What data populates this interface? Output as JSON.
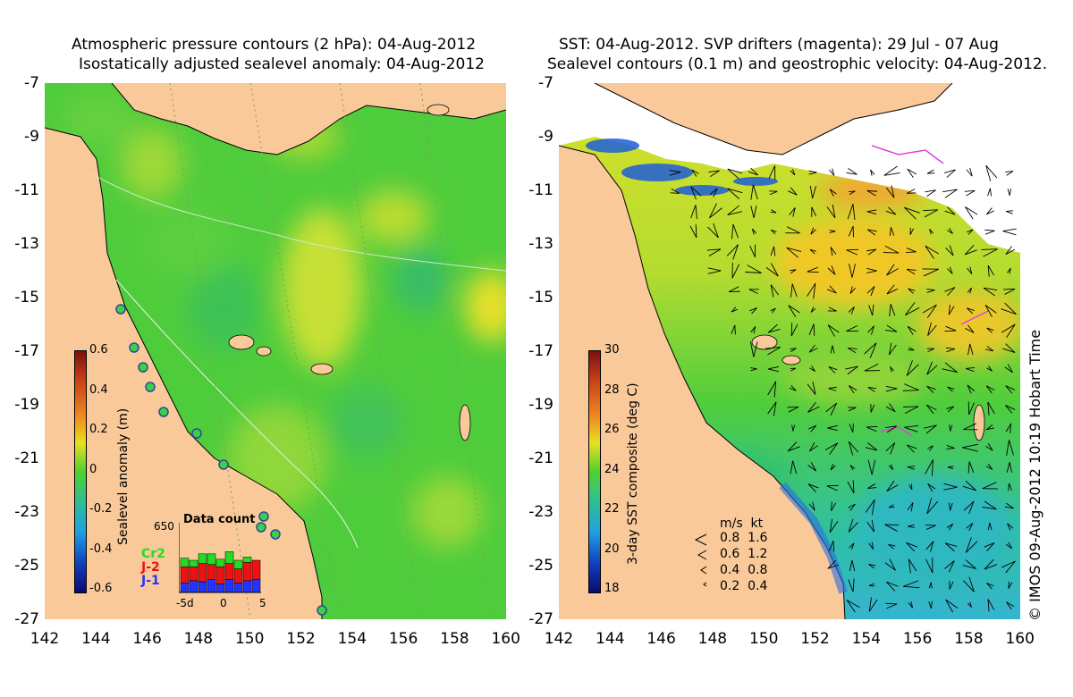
{
  "left_panel": {
    "title_line1": "Atmospheric pressure contours (2 hPa): 04-Aug-2012",
    "title_line2": "Isostatically adjusted sealevel anomaly: 04-Aug-2012",
    "colorbar": {
      "label": "Sealevel anomaly (m)",
      "ticks": [
        "0.6",
        "0.4",
        "0.2",
        "0",
        "-0.2",
        "-0.4",
        "-0.6"
      ]
    },
    "data_count": {
      "title": "Data count",
      "max_label": "650",
      "series": [
        "Cr2",
        "J-2",
        "J-1"
      ],
      "series_colors": [
        "#22dd22",
        "#ee1111",
        "#2233ff"
      ],
      "xticks": [
        "-5d",
        "0",
        "5"
      ],
      "bars": [
        {
          "Cr2": 80,
          "J-2": 150,
          "J-1": 90
        },
        {
          "Cr2": 60,
          "J-2": 130,
          "J-1": 110
        },
        {
          "Cr2": 90,
          "J-2": 170,
          "J-1": 100
        },
        {
          "Cr2": 100,
          "J-2": 140,
          "J-1": 120
        },
        {
          "Cr2": 70,
          "J-2": 160,
          "J-1": 80
        },
        {
          "Cr2": 110,
          "J-2": 150,
          "J-1": 120
        },
        {
          "Cr2": 80,
          "J-2": 130,
          "J-1": 90
        },
        {
          "Cr2": 50,
          "J-2": 170,
          "J-1": 110
        },
        {
          "Cr2": 0,
          "J-2": 180,
          "J-1": 120
        }
      ]
    }
  },
  "right_panel": {
    "title_line1": "SST: 04-Aug-2012. SVP drifters (magenta): 29 Jul - 07 Aug",
    "title_line2": "Sealevel contours (0.1 m) and geostrophic velocity: 04-Aug-2012.",
    "colorbar": {
      "label": "3-day SST composite (deg C)",
      "ticks": [
        "30",
        "28",
        "26",
        "24",
        "22",
        "20",
        "18"
      ]
    },
    "velocity_legend": {
      "header": "m/s  kt",
      "rows": [
        "0.8  1.6",
        "0.6  1.2",
        "0.4  0.8",
        "0.2  0.4"
      ]
    }
  },
  "axes": {
    "lat_ticks": [
      "-7",
      "-9",
      "-11",
      "-13",
      "-15",
      "-17",
      "-19",
      "-21",
      "-23",
      "-25",
      "-27"
    ],
    "lon_ticks": [
      "142",
      "144",
      "146",
      "148",
      "150",
      "152",
      "154",
      "156",
      "158",
      "160"
    ]
  },
  "credit": "© IMOS 09-Aug-2012 10:19 Hobart Time",
  "colors": {
    "land": "#f9c99a",
    "ocean_green": "#4fcf3a",
    "cloud": "#ffffff",
    "drifter": "#e040e0"
  }
}
